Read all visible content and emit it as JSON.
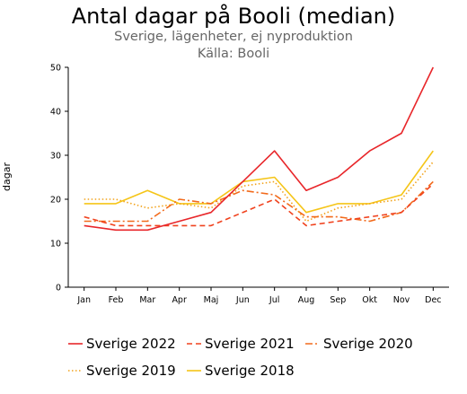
{
  "chart_data": {
    "type": "line",
    "title": "Antal dagar på Booli (median)",
    "subtitle": "Sverige, lägenheter, ej nyproduktion",
    "source": "Källa: Booli",
    "ylabel": "dagar",
    "xlabel": "",
    "ylim": [
      0,
      50
    ],
    "yticks": [
      0,
      10,
      20,
      30,
      40,
      50
    ],
    "grid": false,
    "legend_position": "bottom",
    "categories": [
      "Jan",
      "Feb",
      "Mar",
      "Apr",
      "Maj",
      "Jun",
      "Jul",
      "Aug",
      "Sep",
      "Okt",
      "Nov",
      "Dec"
    ],
    "series": [
      {
        "name": "Sverige 2022",
        "color": "#e8262a",
        "dash": "solid",
        "values": [
          14,
          13,
          13,
          15,
          17,
          24,
          31,
          22,
          25,
          31,
          35,
          50
        ]
      },
      {
        "name": "Sverige 2021",
        "color": "#f0421e",
        "dash": "dashed",
        "values": [
          16,
          14,
          14,
          14,
          14,
          17,
          20,
          14,
          15,
          16,
          17,
          23.5
        ]
      },
      {
        "name": "Sverige 2020",
        "color": "#f26a1b",
        "dash": "dashdot",
        "values": [
          15,
          15,
          15,
          20,
          19,
          22,
          21,
          16,
          16,
          15,
          17,
          24
        ]
      },
      {
        "name": "Sverige 2019",
        "color": "#f2a31b",
        "dash": "dotted",
        "values": [
          20,
          20,
          18,
          19,
          18,
          23,
          24,
          15,
          18,
          19,
          20,
          28.5
        ]
      },
      {
        "name": "Sverige 2018",
        "color": "#f5c518",
        "dash": "solid",
        "values": [
          19,
          19,
          22,
          19,
          19,
          24,
          25,
          17,
          19,
          19,
          21,
          31
        ]
      }
    ]
  }
}
